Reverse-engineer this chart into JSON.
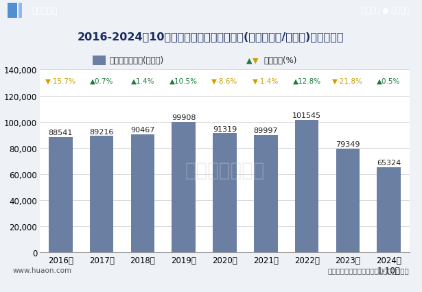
{
  "title": "2016-2024年10月大连市高新技术产业园区(境内目的地/货源地)进出口总额",
  "categories": [
    "2016年",
    "2017年",
    "2018年",
    "2019年",
    "2020年",
    "2021年",
    "2022年",
    "2023年",
    "2024年\n1-10月"
  ],
  "values": [
    88541,
    89216,
    90467,
    99908,
    91319,
    89997,
    101545,
    79349,
    65324
  ],
  "bar_color": "#6b7fa3",
  "growth_rates": [
    "-15.7%",
    "0.7%",
    "1.4%",
    "10.5%",
    "-8.6%",
    "-1.4%",
    "12.8%",
    "-21.8%",
    "0.5%"
  ],
  "growth_symbols": [
    "▼",
    "▲",
    "▲",
    "▲",
    "▼",
    "▼",
    "▲",
    "▼",
    "▲"
  ],
  "growth_positive": [
    false,
    true,
    true,
    true,
    false,
    false,
    true,
    false,
    true
  ],
  "legend_bar_label": "累计进出口总额(万美元)",
  "legend_line_label": "同比增长(%)",
  "ylim": [
    0,
    140000
  ],
  "yticks": [
    0,
    20000,
    40000,
    60000,
    80000,
    100000,
    120000,
    140000
  ],
  "background_color": "#eef2f7",
  "plot_bg_color": "#ffffff",
  "header_bg_color": "#2060a8",
  "title_fontsize": 11.5,
  "tick_fontsize": 8.5,
  "annotation_fontsize": 8,
  "growth_fontsize": 7.5,
  "source_text": "数据来源：中国海关，华经产业研究院整理",
  "website_text": "www.huaon.com",
  "top_right_text": "专业严谨 ● 客观科学",
  "top_left_text": "华经情报网"
}
